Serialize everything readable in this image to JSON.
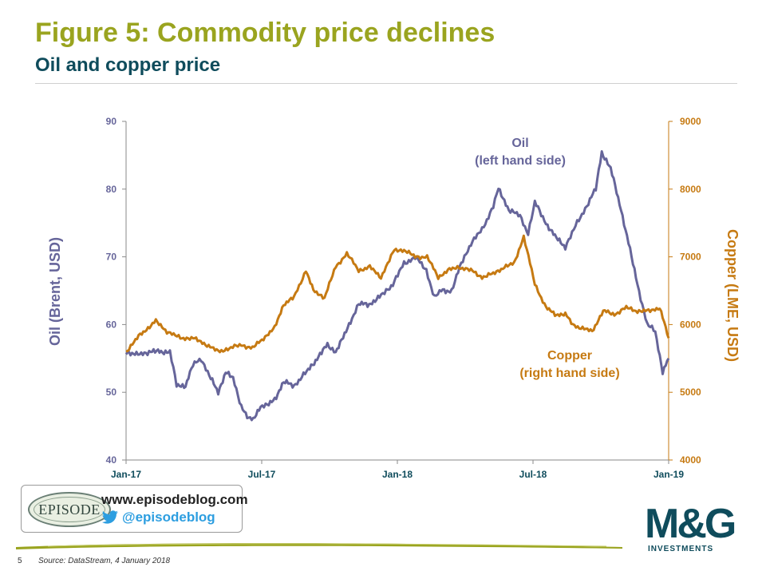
{
  "header": {
    "title": "Figure 5: Commodity price declines",
    "subtitle": "Oil and copper price"
  },
  "colors": {
    "oil": "#66659a",
    "copper": "#c67a12",
    "title": "#9aa41f",
    "dark": "#0f4c5c",
    "twitter": "#2d9ee0"
  },
  "chart_data": {
    "type": "line",
    "x_ticks": [
      "Jan-17",
      "Jul-17",
      "Jan-18",
      "Jul-18",
      "Jan-19"
    ],
    "xlim": [
      "2017-01-01",
      "2019-01-01"
    ],
    "left_axis": {
      "label": "Oil (Brent, USD)",
      "ylim": [
        40,
        90
      ],
      "ticks": [
        "40",
        "50",
        "60",
        "70",
        "80",
        "90"
      ]
    },
    "right_axis": {
      "label": "Copper (LME, USD)",
      "ylim": [
        4000,
        9000
      ],
      "ticks": [
        "4000",
        "5000",
        "6000",
        "7000",
        "8000",
        "9000"
      ]
    },
    "grid": false,
    "series": [
      {
        "name": "Oil",
        "axis": "left",
        "x": [
          "2017-01-01",
          "2017-01-15",
          "2017-02-01",
          "2017-02-15",
          "2017-03-01",
          "2017-03-10",
          "2017-03-22",
          "2017-04-01",
          "2017-04-12",
          "2017-04-25",
          "2017-05-05",
          "2017-05-15",
          "2017-05-25",
          "2017-06-05",
          "2017-06-15",
          "2017-06-21",
          "2017-07-01",
          "2017-07-10",
          "2017-07-20",
          "2017-08-01",
          "2017-08-15",
          "2017-09-01",
          "2017-09-15",
          "2017-09-29",
          "2017-10-10",
          "2017-10-20",
          "2017-11-01",
          "2017-11-10",
          "2017-11-24",
          "2017-12-08",
          "2017-12-26",
          "2018-01-10",
          "2018-01-25",
          "2018-02-09",
          "2018-02-20",
          "2018-03-01",
          "2018-03-15",
          "2018-03-28",
          "2018-04-10",
          "2018-04-25",
          "2018-05-10",
          "2018-05-17",
          "2018-05-31",
          "2018-06-15",
          "2018-06-26",
          "2018-07-05",
          "2018-07-20",
          "2018-08-01",
          "2018-08-15",
          "2018-08-31",
          "2018-09-15",
          "2018-09-25",
          "2018-10-03",
          "2018-10-15",
          "2018-10-29",
          "2018-11-08",
          "2018-11-20",
          "2018-12-03",
          "2018-12-14",
          "2018-12-24",
          "2019-01-01"
        ],
        "values": [
          56,
          55.5,
          56,
          56,
          56,
          51,
          51,
          54,
          55,
          52,
          50,
          53,
          52,
          48,
          46,
          46,
          48,
          48,
          49,
          51.5,
          51,
          53,
          55,
          57,
          56,
          58,
          61,
          63,
          63,
          64,
          66,
          69,
          70,
          68,
          64,
          65,
          65,
          69,
          72,
          74,
          77.5,
          80,
          77,
          76,
          73.5,
          78,
          75,
          73,
          71.5,
          75,
          78,
          80,
          85.5,
          83,
          77,
          72,
          66,
          60,
          59,
          53,
          55
        ]
      },
      {
        "name": "Copper",
        "axis": "right",
        "x": [
          "2017-01-01",
          "2017-01-20",
          "2017-02-10",
          "2017-02-25",
          "2017-03-15",
          "2017-04-01",
          "2017-04-20",
          "2017-05-05",
          "2017-05-20",
          "2017-06-05",
          "2017-06-20",
          "2017-07-05",
          "2017-07-20",
          "2017-08-01",
          "2017-08-15",
          "2017-08-31",
          "2017-09-10",
          "2017-09-25",
          "2017-10-10",
          "2017-10-25",
          "2017-11-10",
          "2017-11-25",
          "2017-12-10",
          "2017-12-28",
          "2018-01-10",
          "2018-01-25",
          "2018-02-10",
          "2018-02-25",
          "2018-03-10",
          "2018-03-25",
          "2018-04-10",
          "2018-04-25",
          "2018-05-10",
          "2018-05-25",
          "2018-06-07",
          "2018-06-20",
          "2018-07-05",
          "2018-07-20",
          "2018-08-01",
          "2018-08-15",
          "2018-08-25",
          "2018-09-05",
          "2018-09-20",
          "2018-10-05",
          "2018-10-20",
          "2018-11-05",
          "2018-11-20",
          "2018-12-05",
          "2018-12-20",
          "2019-01-01"
        ],
        "values": [
          5600,
          5850,
          6050,
          5900,
          5800,
          5800,
          5700,
          5600,
          5650,
          5700,
          5650,
          5800,
          5950,
          6300,
          6400,
          6800,
          6500,
          6400,
          6850,
          7050,
          6800,
          6850,
          6700,
          7100,
          7100,
          7000,
          7000,
          6700,
          6800,
          6850,
          6800,
          6700,
          6750,
          6850,
          6900,
          7300,
          6600,
          6250,
          6150,
          6150,
          6000,
          5950,
          5900,
          6200,
          6150,
          6250,
          6200,
          6200,
          6250,
          5800
        ]
      }
    ],
    "annotations": [
      {
        "text": "Oil",
        "subtext": "(left hand side)"
      },
      {
        "text": "Copper",
        "subtext": "(right hand side)"
      }
    ]
  },
  "branding": {
    "logo_text": "EPISODE",
    "website": "www.episodeblog.com",
    "twitter_handle": "@episodeblog",
    "company_logo": "M&G",
    "company_sub": "INVESTMENTS"
  },
  "footer": {
    "page_number": "5",
    "source": "Source: DataStream, 4 January 2018"
  }
}
